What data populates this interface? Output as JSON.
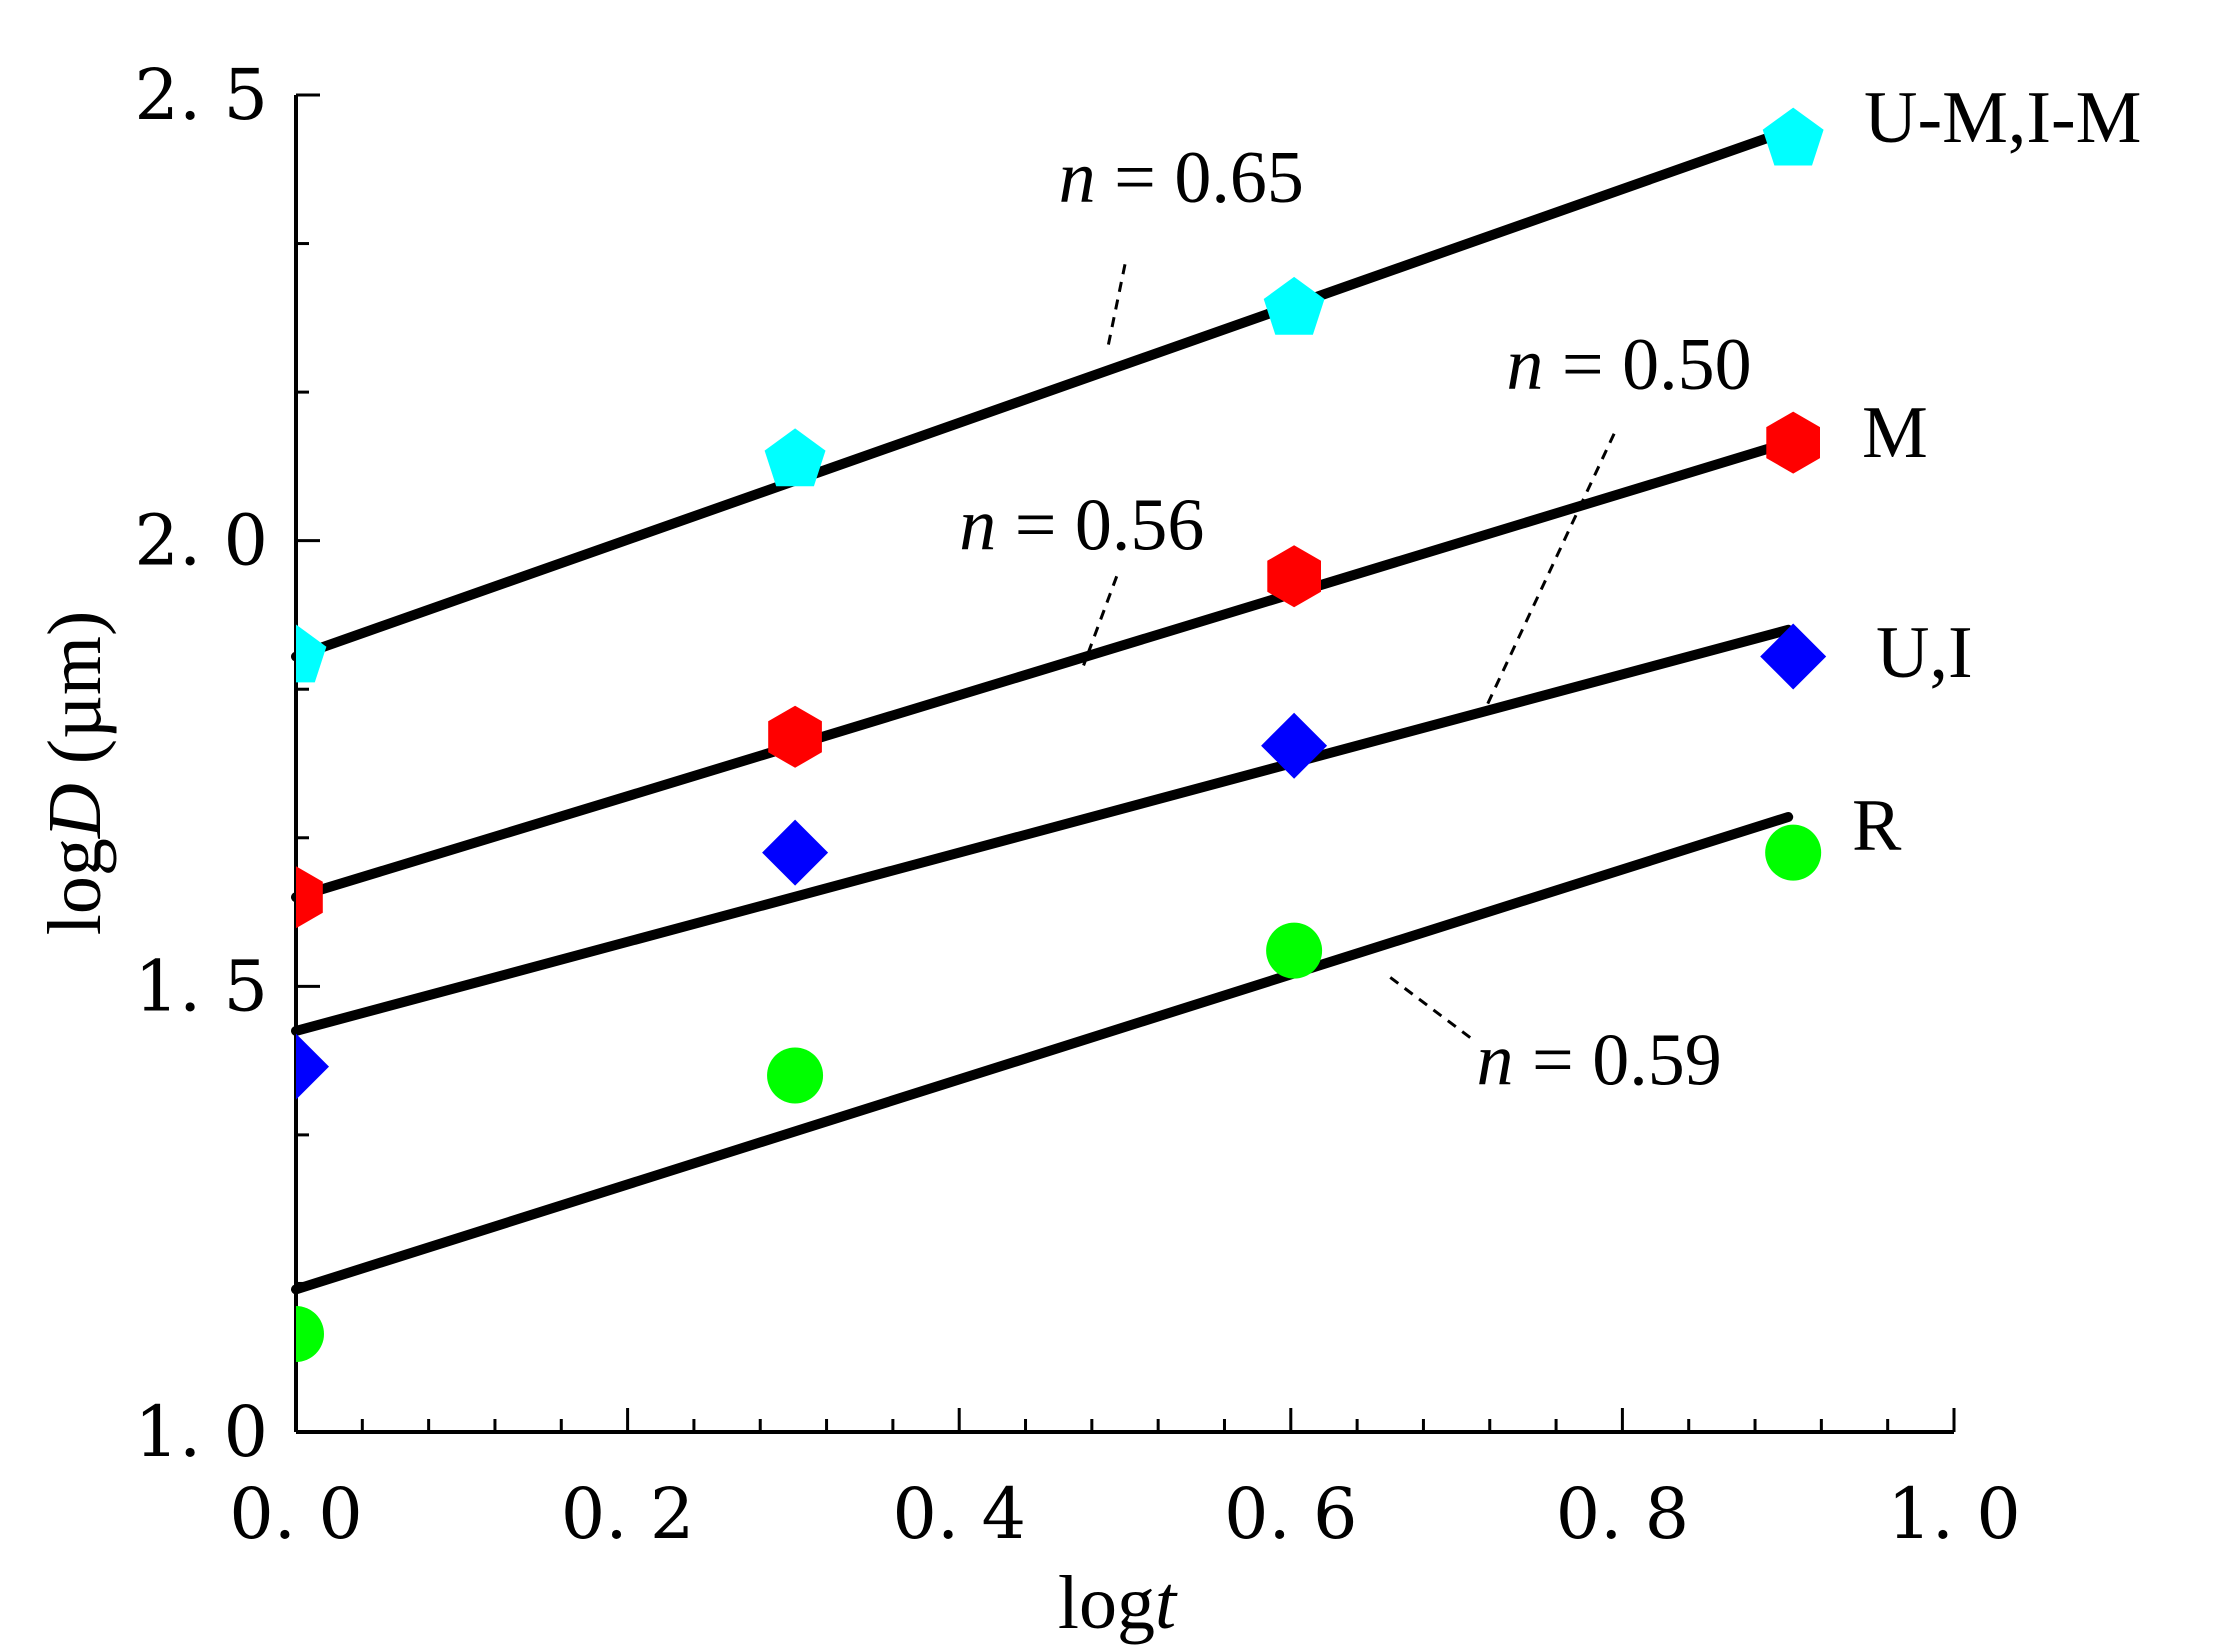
{
  "chart_data": {
    "type": "scatter",
    "xlabel_prefix": "log",
    "xlabel_var": "t",
    "ylabel_prefix": "log",
    "ylabel_var": "D",
    "ylabel_unit": " (µm)",
    "xlim": [
      0.0,
      1.0
    ],
    "ylim": [
      1.0,
      2.5
    ],
    "x_ticks": [
      0.0,
      0.2,
      0.4,
      0.6,
      0.8,
      1.0
    ],
    "x_tick_labels": [
      "0. 0",
      "0. 2",
      "0. 4",
      "0. 6",
      "0. 8",
      "1. 0"
    ],
    "y_ticks": [
      1.0,
      1.5,
      2.0,
      2.5
    ],
    "y_tick_labels": [
      "1. 0",
      "1. 5",
      "2. 0",
      "2. 5"
    ],
    "x": [
      0.0,
      0.301,
      0.602,
      0.903
    ],
    "series": [
      {
        "name": "U-M,I-M",
        "marker": "pentagon",
        "color": "#00ffff",
        "values": [
          1.87,
          2.09,
          2.26,
          2.45
        ],
        "fit": {
          "x": [
            0.0,
            0.9
          ],
          "y": [
            1.87,
            2.46
          ]
        },
        "slope_label": "n = 0.65"
      },
      {
        "name": "M",
        "marker": "hexagon",
        "color": "#ff0000",
        "values": [
          1.6,
          1.78,
          1.96,
          2.11
        ],
        "fit": {
          "x": [
            0.0,
            0.9
          ],
          "y": [
            1.6,
            2.11
          ]
        },
        "slope_label": "n = 0.56"
      },
      {
        "name": "U,I",
        "marker": "diamond",
        "color": "#0000ff",
        "values": [
          1.41,
          1.65,
          1.77,
          1.87
        ],
        "fit": {
          "x": [
            0.0,
            0.9
          ],
          "y": [
            1.45,
            1.9
          ]
        },
        "slope_label": "n = 0.50"
      },
      {
        "name": "R",
        "marker": "circle",
        "color": "#00ff00",
        "values": [
          1.11,
          1.4,
          1.54,
          1.65
        ],
        "fit": {
          "x": [
            0.0,
            0.9
          ],
          "y": [
            1.16,
            1.69
          ]
        },
        "slope_label": "n = 0.59"
      }
    ],
    "annotations": [
      {
        "series": 0,
        "n_value": "0.65",
        "text_at": [
          0.46,
          2.38
        ],
        "leader_from": [
          0.5,
          2.31
        ],
        "leader_to": [
          0.49,
          2.22
        ]
      },
      {
        "series": 1,
        "n_value": "0.56",
        "text_at": [
          0.4,
          1.99
        ],
        "leader_from": [
          0.495,
          1.96
        ],
        "leader_to": [
          0.475,
          1.86
        ]
      },
      {
        "series": 2,
        "n_value": "0.50",
        "text_at": [
          0.73,
          2.17
        ],
        "leader_from": [
          0.795,
          2.12
        ],
        "leader_to": [
          0.717,
          1.81
        ]
      },
      {
        "series": 3,
        "n_value": "0.59",
        "text_at": [
          0.712,
          1.39
        ],
        "leader_from": [
          0.66,
          1.51
        ],
        "leader_to": [
          0.71,
          1.44
        ]
      }
    ],
    "n_symbol": "n",
    "n_equals": " = "
  }
}
